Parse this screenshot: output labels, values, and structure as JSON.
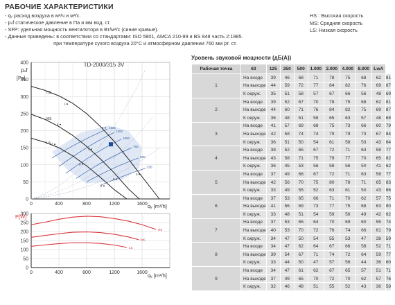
{
  "header": {
    "title": "РАБОЧИЕ ХАРАКТЕРИСТИКИ",
    "notes": [
      "- qᵥ расход воздуха в м³/ч и м³/с.",
      "- pₛf статическое давление в Па и мм вод. ст.",
      "- SFP: удельная мощность вентилятора в Вт/м³/с (синие кривые).",
      "- Данные приведены: в соответствии со стандартами: ISO 5801, AMCA 210-99 и BS 848 часть 2:1985.",
      "при температуре сухого воздуха 20°С и атмосферном давлении 760 мм рт. ст."
    ],
    "legend": [
      "HS : Высокая скорость",
      "MS: Средняя скорость",
      "LS: Низкая скорость"
    ]
  },
  "chart_data": [
    {
      "type": "line",
      "title": "TD-2000/315 3V",
      "ylabel": "psf [Pa]",
      "xlabel": "qv [m³/h]",
      "xlim": [
        0,
        2000
      ],
      "ylim": [
        0,
        400
      ],
      "x_ticks": [
        "0",
        "400",
        "800",
        "1200",
        "1600"
      ],
      "y_ticks": [
        "0",
        "50",
        "100",
        "150",
        "200",
        "250",
        "300",
        "350",
        "400"
      ],
      "grid": true,
      "series": [
        {
          "name": "HS",
          "color": "#222222",
          "x": [
            0,
            200,
            400,
            600,
            800,
            1000,
            1200,
            1400,
            1600,
            1850
          ],
          "y": [
            330,
            318,
            302,
            280,
            250,
            212,
            168,
            118,
            65,
            0
          ]
        },
        {
          "name": "MS",
          "color": "#222222",
          "x": [
            0,
            200,
            400,
            600,
            800,
            1000,
            1200,
            1400,
            1560
          ],
          "y": [
            248,
            233,
            212,
            186,
            154,
            117,
            76,
            30,
            0
          ]
        },
        {
          "name": "LS",
          "color": "#222222",
          "x": [
            0,
            200,
            400,
            600,
            800,
            1000,
            1200,
            1380
          ],
          "y": [
            178,
            166,
            150,
            126,
            97,
            63,
            27,
            0
          ]
        }
      ],
      "sfp_lines": {
        "color": "#3a63a8",
        "labels": [
          "1500",
          "1250",
          "1000",
          "750",
          "500",
          "250"
        ]
      },
      "operating_points": [
        "1",
        "2",
        "3",
        "4",
        "5",
        "6",
        "7",
        "8",
        "9"
      ],
      "marked_point": {
        "x": 1150,
        "y": 160,
        "color": "#1f4e9c"
      }
    },
    {
      "type": "line",
      "ylabel": "P[W]",
      "xlabel": "qv [m³/h]",
      "xlim": [
        0,
        2000
      ],
      "ylim": [
        0,
        300
      ],
      "x_ticks": [
        "0",
        "400",
        "800",
        "1200",
        "1600"
      ],
      "y_ticks": [
        "0",
        "50",
        "100",
        "150",
        "200",
        "250",
        "300"
      ],
      "grid": true,
      "series": [
        {
          "name": "HS",
          "color": "#d8343a",
          "x": [
            0,
            200,
            400,
            600,
            800,
            1000,
            1200,
            1400,
            1600,
            1800
          ],
          "y": [
            238,
            252,
            268,
            280,
            285,
            282,
            272,
            258,
            238,
            212
          ]
        },
        {
          "name": "MS",
          "color": "#d8343a",
          "x": [
            0,
            200,
            400,
            600,
            800,
            1000,
            1200,
            1400,
            1550
          ],
          "y": [
            168,
            178,
            188,
            196,
            198,
            194,
            185,
            170,
            155
          ]
        },
        {
          "name": "LS",
          "color": "#d8343a",
          "x": [
            0,
            200,
            400,
            600,
            800,
            1000,
            1200,
            1380
          ],
          "y": [
            118,
            126,
            133,
            138,
            138,
            134,
            125,
            112
          ]
        }
      ]
    }
  ],
  "sound_table": {
    "title": "Уровень звуковой мощности (дБ(А))",
    "headers": [
      "Рабочая точка",
      "63",
      "125",
      "250",
      "500",
      "1.000",
      "2.000",
      "4.000",
      "8.000",
      "LwA"
    ],
    "points": [
      {
        "point": "1",
        "rows": [
          {
            "label": "На входе",
            "values": [
              "39",
              "46",
              "68",
              "71",
              "78",
              "75",
              "68",
              "62",
              "81"
            ]
          },
          {
            "label": "На выходе",
            "values": [
              "44",
              "59",
              "72",
              "77",
              "84",
              "82",
              "76",
              "69",
              "87"
            ]
          },
          {
            "label": "К окруж.",
            "values": [
              "35",
              "51",
              "58",
              "57",
              "67",
              "66",
              "56",
              "48",
              "69"
            ]
          }
        ]
      },
      {
        "point": "2",
        "rows": [
          {
            "label": "На входе",
            "values": [
              "39",
              "52",
              "67",
              "70",
              "78",
              "75",
              "68",
              "62",
              "81"
            ]
          },
          {
            "label": "На выходе",
            "values": [
              "44",
              "60",
              "71",
              "76",
              "84",
              "82",
              "75",
              "69",
              "87"
            ]
          },
          {
            "label": "К окруж.",
            "values": [
              "36",
              "48",
              "51",
              "58",
              "65",
              "63",
              "57",
              "48",
              "68"
            ]
          }
        ]
      },
      {
        "point": "3",
        "rows": [
          {
            "label": "На входе",
            "values": [
              "41",
              "57",
              "69",
              "68",
              "75",
              "73",
              "66",
              "60",
              "79"
            ]
          },
          {
            "label": "На выходе",
            "values": [
              "42",
              "58",
              "74",
              "74",
              "79",
              "79",
              "73",
              "67",
              "84"
            ]
          },
          {
            "label": "К окруж.",
            "values": [
              "36",
              "51",
              "50",
              "54",
              "61",
              "58",
              "53",
              "43",
              "64"
            ]
          }
        ]
      },
      {
        "point": "4",
        "rows": [
          {
            "label": "На входе",
            "values": [
              "38",
              "52",
              "65",
              "67",
              "72",
              "71",
              "63",
              "58",
              "77"
            ]
          },
          {
            "label": "На выходе",
            "values": [
              "43",
              "58",
              "71",
              "75",
              "79",
              "77",
              "70",
              "65",
              "82"
            ]
          },
          {
            "label": "К окруж.",
            "values": [
              "36",
              "45",
              "53",
              "56",
              "58",
              "56",
              "50",
              "41",
              "62"
            ]
          }
        ]
      },
      {
        "point": "5",
        "rows": [
          {
            "label": "На входе",
            "values": [
              "37",
              "49",
              "66",
              "67",
              "72",
              "71",
              "63",
              "58",
              "77"
            ]
          },
          {
            "label": "На выходе",
            "values": [
              "42",
              "56",
              "70",
              "75",
              "80",
              "78",
              "71",
              "65",
              "83"
            ]
          },
          {
            "label": "К окруж.",
            "values": [
              "33",
              "49",
              "55",
              "52",
              "63",
              "61",
              "50",
              "43",
              "66"
            ]
          }
        ]
      },
      {
        "point": "6",
        "rows": [
          {
            "label": "На входе",
            "values": [
              "37",
              "53",
              "65",
              "66",
              "71",
              "70",
              "62",
              "57",
              "75"
            ]
          },
          {
            "label": "На выходе",
            "values": [
              "41",
              "56",
              "69",
              "73",
              "77",
              "75",
              "68",
              "63",
              "80"
            ]
          },
          {
            "label": "К окруж.",
            "values": [
              "33",
              "48",
              "51",
              "54",
              "59",
              "56",
              "49",
              "42",
              "62"
            ]
          }
        ]
      },
      {
        "point": "7",
        "rows": [
          {
            "label": "На входе",
            "values": [
              "37",
              "53",
              "65",
              "64",
              "70",
              "69",
              "60",
              "55",
              "74"
            ]
          },
          {
            "label": "На выходе",
            "values": [
              "40",
              "53",
              "70",
              "72",
              "76",
              "74",
              "66",
              "61",
              "79"
            ]
          },
          {
            "label": "К окруж.",
            "values": [
              "34",
              "47",
              "50",
              "54",
              "55",
              "53",
              "47",
              "38",
              "59"
            ]
          }
        ]
      },
      {
        "point": "8",
        "rows": [
          {
            "label": "На входе",
            "values": [
              "34",
              "47",
              "62",
              "64",
              "67",
              "66",
              "58",
              "52",
              "71"
            ]
          },
          {
            "label": "На выходе",
            "values": [
              "39",
              "54",
              "67",
              "71",
              "74",
              "72",
              "64",
              "59",
              "77"
            ]
          },
          {
            "label": "К окруж.",
            "values": [
              "33",
              "44",
              "50",
              "47",
              "57",
              "56",
              "44",
              "36",
              "60"
            ]
          }
        ]
      },
      {
        "point": "9",
        "rows": [
          {
            "label": "На входе",
            "values": [
              "34",
              "47",
              "61",
              "62",
              "67",
              "65",
              "57",
              "51",
              "71"
            ]
          },
          {
            "label": "На выходе",
            "values": [
              "37",
              "49",
              "65",
              "70",
              "72",
              "70",
              "62",
              "57",
              "76"
            ]
          },
          {
            "label": "К окруж.",
            "values": [
              "32",
              "46",
              "48",
              "51",
              "55",
              "52",
              "43",
              "36",
              "58"
            ]
          }
        ]
      }
    ]
  }
}
